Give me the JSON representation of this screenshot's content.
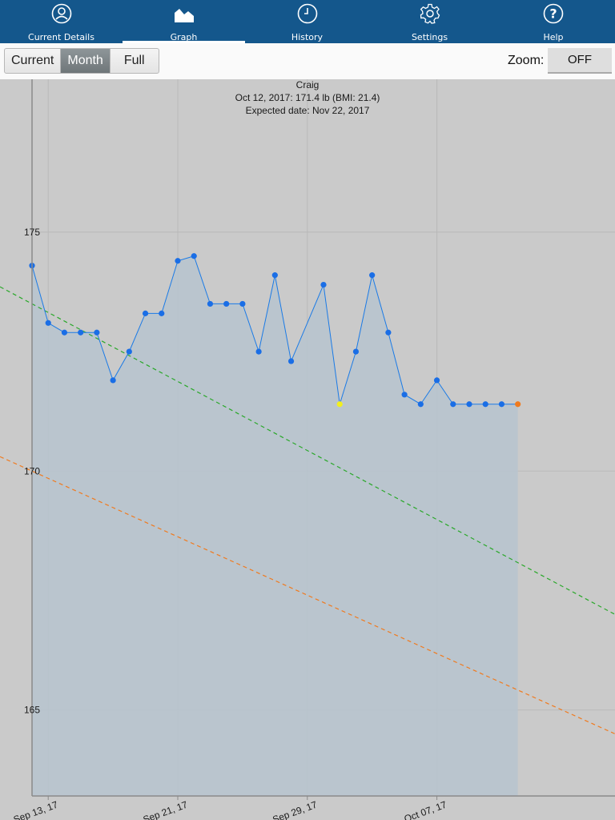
{
  "tabs": [
    {
      "label": "Current Details",
      "icon": "person-icon"
    },
    {
      "label": "Graph",
      "icon": "graph-icon",
      "active": true
    },
    {
      "label": "History",
      "icon": "clock-icon"
    },
    {
      "label": "Settings",
      "icon": "gear-icon"
    },
    {
      "label": "Help",
      "icon": "help-icon"
    }
  ],
  "toolbar": {
    "range_options": [
      "Current",
      "Month",
      "Full"
    ],
    "range_selected": "Month",
    "zoom_label": "Zoom:",
    "zoom_value": "OFF"
  },
  "chart_data": {
    "type": "line",
    "title": "Craig",
    "subtitle": "Oct 12, 2017: 171.4 lb (BMI: 21.4)",
    "subtitle2": "Expected date: Nov 22, 2017",
    "xlim": [
      "2017-09-12",
      "2017-10-18"
    ],
    "ylim": [
      163.2,
      178.2
    ],
    "x_ticks": [
      "Sep 13, 17",
      "Sep 21, 17",
      "Sep 29, 17",
      "Oct 07, 17"
    ],
    "x_tick_dates": [
      "2017-09-13",
      "2017-09-21",
      "2017-09-29",
      "2017-10-07"
    ],
    "y_ticks": [
      165,
      170,
      175
    ],
    "grid": true,
    "colors": {
      "line": "#1a7ae6",
      "point": "#1a6ee6",
      "area": "#b7c4cf",
      "low": "#f2ef1c",
      "current": "#f07a1e",
      "trend": "#2aa82a",
      "target": "#f07a1e"
    },
    "series": [
      {
        "values": [
          [
            "2017-09-12",
            174.3
          ],
          [
            "2017-09-13",
            173.1
          ],
          [
            "2017-09-14",
            172.9
          ],
          [
            "2017-09-15",
            172.9
          ],
          [
            "2017-09-16",
            172.9
          ],
          [
            "2017-09-17",
            171.9
          ],
          [
            "2017-09-18",
            172.5
          ],
          [
            "2017-09-19",
            173.3
          ],
          [
            "2017-09-20",
            173.3
          ],
          [
            "2017-09-21",
            174.4
          ],
          [
            "2017-09-22",
            174.5
          ],
          [
            "2017-09-23",
            173.5
          ],
          [
            "2017-09-24",
            173.5
          ],
          [
            "2017-09-25",
            173.5
          ],
          [
            "2017-09-26",
            172.5
          ],
          [
            "2017-09-27",
            174.1
          ],
          [
            "2017-09-28",
            172.3
          ],
          [
            "2017-09-30",
            173.9
          ],
          [
            "2017-10-01",
            171.4
          ],
          [
            "2017-10-02",
            172.5
          ],
          [
            "2017-10-03",
            174.1
          ],
          [
            "2017-10-04",
            172.9
          ],
          [
            "2017-10-05",
            171.6
          ],
          [
            "2017-10-06",
            171.4
          ],
          [
            "2017-10-07",
            171.9
          ],
          [
            "2017-10-08",
            171.4
          ],
          [
            "2017-10-09",
            171.4
          ],
          [
            "2017-10-10",
            171.4
          ],
          [
            "2017-10-11",
            171.4
          ],
          [
            "2017-10-12",
            171.4
          ]
        ]
      }
    ],
    "trend_line": [
      [
        "2017-09-12",
        173.5
      ],
      [
        "2017-10-18",
        167.0
      ]
    ],
    "target_line": [
      [
        "2017-09-12",
        170.0
      ],
      [
        "2017-10-18",
        164.5
      ]
    ]
  }
}
